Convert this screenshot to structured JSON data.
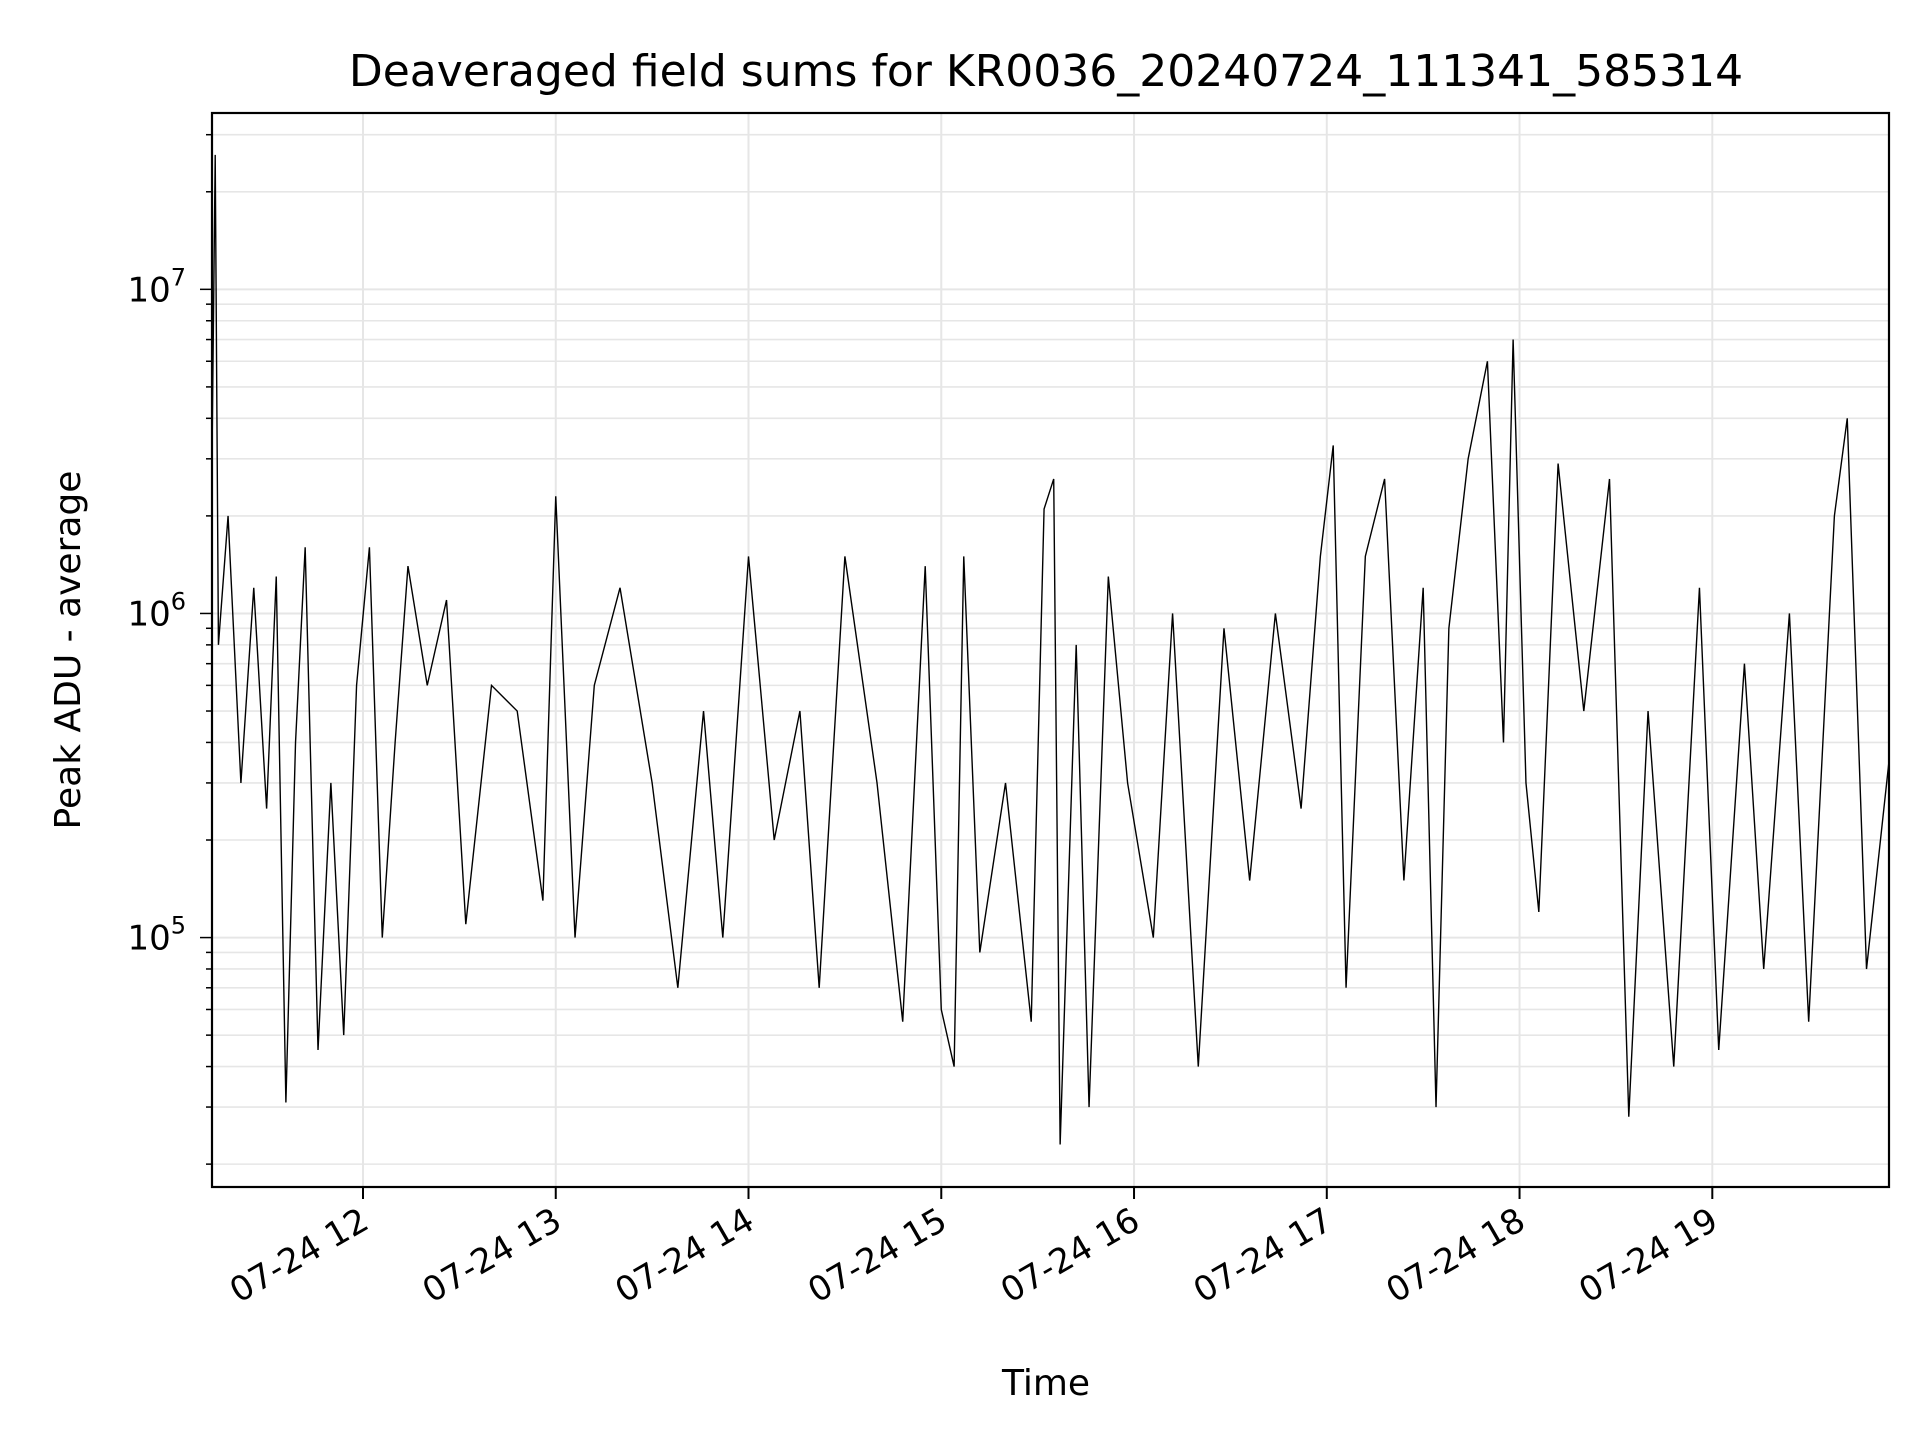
{
  "chart_data": {
    "type": "line",
    "title": "Deaveraged field sums for KR0036_20240724_111341_585314",
    "xlabel": "Time",
    "ylabel": "Peak ADU - average",
    "yscale": "log",
    "ylim": [
      17000,
      35000000
    ],
    "xlim": [
      "2024-07-24 11:13",
      "2024-07-24 19:55"
    ],
    "grid": true,
    "x_ticks": [
      {
        "value": "2024-07-24 12:00",
        "label": "07-24 12"
      },
      {
        "value": "2024-07-24 13:00",
        "label": "07-24 13"
      },
      {
        "value": "2024-07-24 14:00",
        "label": "07-24 14"
      },
      {
        "value": "2024-07-24 15:00",
        "label": "07-24 15"
      },
      {
        "value": "2024-07-24 16:00",
        "label": "07-24 16"
      },
      {
        "value": "2024-07-24 17:00",
        "label": "07-24 17"
      },
      {
        "value": "2024-07-24 18:00",
        "label": "07-24 18"
      },
      {
        "value": "2024-07-24 19:00",
        "label": "07-24 19"
      }
    ],
    "y_ticks": [
      {
        "value": 100000,
        "base": "10",
        "exp": "5"
      },
      {
        "value": 1000000,
        "base": "10",
        "exp": "6"
      },
      {
        "value": 10000000,
        "base": "10",
        "exp": "7"
      }
    ],
    "series": [
      {
        "color": "#000000",
        "points": [
          [
            "2024-07-24 11:13",
            3000000
          ],
          [
            "2024-07-24 11:14",
            26000000
          ],
          [
            "2024-07-24 11:15",
            800000
          ],
          [
            "2024-07-24 11:18",
            2000000
          ],
          [
            "2024-07-24 11:22",
            300000
          ],
          [
            "2024-07-24 11:26",
            1200000
          ],
          [
            "2024-07-24 11:30",
            250000
          ],
          [
            "2024-07-24 11:33",
            1300000
          ],
          [
            "2024-07-24 11:36",
            31000
          ],
          [
            "2024-07-24 11:39",
            400000
          ],
          [
            "2024-07-24 11:42",
            1600000
          ],
          [
            "2024-07-24 11:46",
            45000
          ],
          [
            "2024-07-24 11:50",
            300000
          ],
          [
            "2024-07-24 11:54",
            50000
          ],
          [
            "2024-07-24 11:58",
            600000
          ],
          [
            "2024-07-24 12:02",
            1600000
          ],
          [
            "2024-07-24 12:06",
            100000
          ],
          [
            "2024-07-24 12:10",
            400000
          ],
          [
            "2024-07-24 12:14",
            1400000
          ],
          [
            "2024-07-24 12:20",
            600000
          ],
          [
            "2024-07-24 12:26",
            1100000
          ],
          [
            "2024-07-24 12:32",
            110000
          ],
          [
            "2024-07-24 12:40",
            600000
          ],
          [
            "2024-07-24 12:48",
            500000
          ],
          [
            "2024-07-24 12:56",
            130000
          ],
          [
            "2024-07-24 13:00",
            2300000
          ],
          [
            "2024-07-24 13:06",
            100000
          ],
          [
            "2024-07-24 13:12",
            600000
          ],
          [
            "2024-07-24 13:20",
            1200000
          ],
          [
            "2024-07-24 13:30",
            300000
          ],
          [
            "2024-07-24 13:38",
            70000
          ],
          [
            "2024-07-24 13:46",
            500000
          ],
          [
            "2024-07-24 13:52",
            100000
          ],
          [
            "2024-07-24 14:00",
            1500000
          ],
          [
            "2024-07-24 14:08",
            200000
          ],
          [
            "2024-07-24 14:16",
            500000
          ],
          [
            "2024-07-24 14:22",
            70000
          ],
          [
            "2024-07-24 14:30",
            1500000
          ],
          [
            "2024-07-24 14:40",
            300000
          ],
          [
            "2024-07-24 14:48",
            55000
          ],
          [
            "2024-07-24 14:55",
            1400000
          ],
          [
            "2024-07-24 15:00",
            60000
          ],
          [
            "2024-07-24 15:04",
            40000
          ],
          [
            "2024-07-24 15:07",
            1500000
          ],
          [
            "2024-07-24 15:12",
            90000
          ],
          [
            "2024-07-24 15:20",
            300000
          ],
          [
            "2024-07-24 15:28",
            55000
          ],
          [
            "2024-07-24 15:32",
            2100000
          ],
          [
            "2024-07-24 15:35",
            2600000
          ],
          [
            "2024-07-24 15:37",
            23000
          ],
          [
            "2024-07-24 15:42",
            800000
          ],
          [
            "2024-07-24 15:46",
            30000
          ],
          [
            "2024-07-24 15:52",
            1300000
          ],
          [
            "2024-07-24 15:58",
            300000
          ],
          [
            "2024-07-24 16:06",
            100000
          ],
          [
            "2024-07-24 16:12",
            1000000
          ],
          [
            "2024-07-24 16:20",
            40000
          ],
          [
            "2024-07-24 16:28",
            900000
          ],
          [
            "2024-07-24 16:36",
            150000
          ],
          [
            "2024-07-24 16:44",
            1000000
          ],
          [
            "2024-07-24 16:52",
            250000
          ],
          [
            "2024-07-24 16:58",
            1500000
          ],
          [
            "2024-07-24 17:02",
            3300000
          ],
          [
            "2024-07-24 17:06",
            70000
          ],
          [
            "2024-07-24 17:12",
            1500000
          ],
          [
            "2024-07-24 17:18",
            2600000
          ],
          [
            "2024-07-24 17:24",
            150000
          ],
          [
            "2024-07-24 17:30",
            1200000
          ],
          [
            "2024-07-24 17:34",
            30000
          ],
          [
            "2024-07-24 17:38",
            900000
          ],
          [
            "2024-07-24 17:44",
            3000000
          ],
          [
            "2024-07-24 17:50",
            6000000
          ],
          [
            "2024-07-24 17:55",
            400000
          ],
          [
            "2024-07-24 17:58",
            7000000
          ],
          [
            "2024-07-24 18:02",
            300000
          ],
          [
            "2024-07-24 18:06",
            120000
          ],
          [
            "2024-07-24 18:12",
            2900000
          ],
          [
            "2024-07-24 18:20",
            500000
          ],
          [
            "2024-07-24 18:28",
            2600000
          ],
          [
            "2024-07-24 18:34",
            28000
          ],
          [
            "2024-07-24 18:40",
            500000
          ],
          [
            "2024-07-24 18:48",
            40000
          ],
          [
            "2024-07-24 18:56",
            1200000
          ],
          [
            "2024-07-24 19:02",
            45000
          ],
          [
            "2024-07-24 19:10",
            700000
          ],
          [
            "2024-07-24 19:16",
            80000
          ],
          [
            "2024-07-24 19:24",
            1000000
          ],
          [
            "2024-07-24 19:30",
            55000
          ],
          [
            "2024-07-24 19:38",
            2000000
          ],
          [
            "2024-07-24 19:42",
            4000000
          ],
          [
            "2024-07-24 19:48",
            80000
          ],
          [
            "2024-07-24 19:55",
            350000
          ]
        ]
      }
    ]
  }
}
